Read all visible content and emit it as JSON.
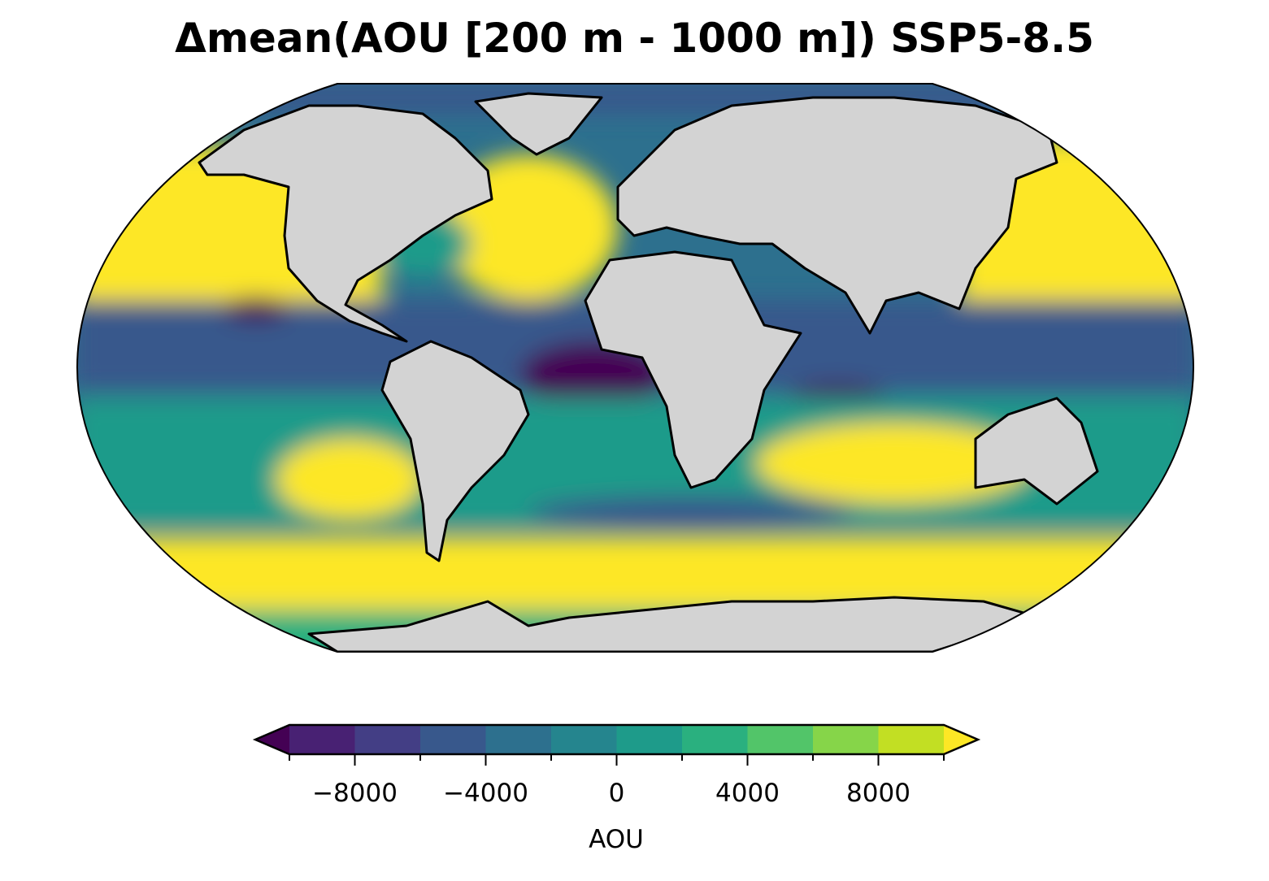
{
  "title": "Δmean(AOU [200 m - 1000 m]) SSP5-8.5",
  "chart_data": {
    "type": "heatmap",
    "projection": "Robinson",
    "title": "Δmean(AOU [200 m - 1000 m]) SSP5-8.5",
    "colorbar": {
      "label": "AOU",
      "levels": [
        -10000,
        -8000,
        -6000,
        -4000,
        -2000,
        0,
        2000,
        4000,
        6000,
        8000,
        10000
      ],
      "tick_values": [
        -8000,
        -4000,
        0,
        4000,
        8000
      ],
      "tick_labels": [
        "−8000",
        "−4000",
        "0",
        "4000",
        "8000"
      ],
      "extend": "both",
      "colors": [
        "#440154",
        "#482173",
        "#433e85",
        "#38588c",
        "#2d708e",
        "#25858e",
        "#1e9b8a",
        "#2ab07f",
        "#52c569",
        "#86d549",
        "#c2df23",
        "#fde725"
      ]
    },
    "land_color": "#d3d3d3",
    "colormap": "viridis"
  }
}
